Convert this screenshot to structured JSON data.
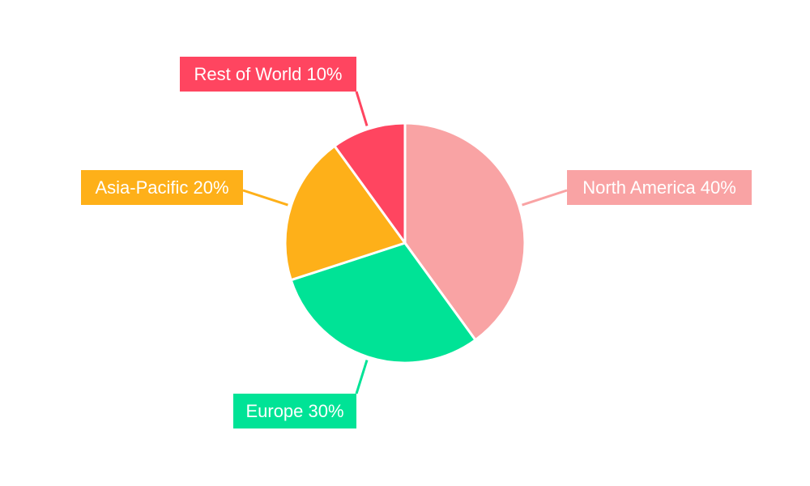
{
  "chart_data": {
    "type": "pie",
    "start_angle": "top, clockwise",
    "slices": [
      {
        "label": "North America",
        "value": 40,
        "display": "North America 40%",
        "color": "#F9A3A4"
      },
      {
        "label": "Europe",
        "value": 30,
        "display": "Europe 30%",
        "color": "#00E396"
      },
      {
        "label": "Asia-Pacific",
        "value": 20,
        "display": "Asia-Pacific 20%",
        "color": "#FEB019"
      },
      {
        "label": "Rest of World",
        "value": 10,
        "display": "Rest of World 10%",
        "color": "#FF4560"
      }
    ],
    "legend": "none",
    "labels": "outside callout boxes with leader lines"
  }
}
